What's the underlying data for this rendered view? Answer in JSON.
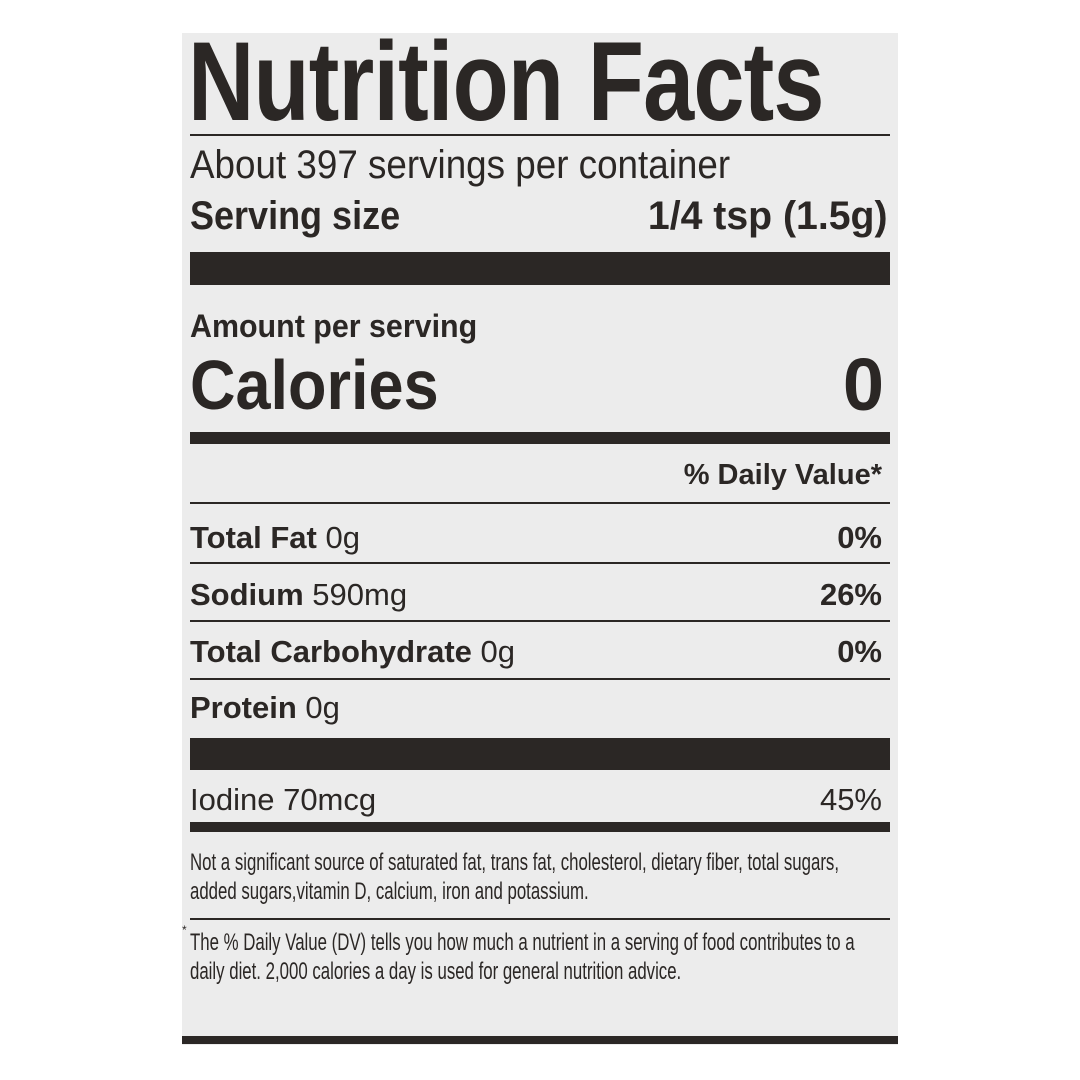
{
  "title": "Nutrition Facts",
  "servings_per_container": "About 397 servings per container",
  "serving_size": {
    "label": "Serving size",
    "value": "1/4 tsp (1.5g)"
  },
  "amount_per_serving": "Amount per serving",
  "calories": {
    "label": "Calories",
    "value": "0"
  },
  "daily_value_header": "% Daily Value*",
  "nutrients": [
    {
      "name": "Total Fat",
      "amount": "0g",
      "dv": "0%"
    },
    {
      "name": "Sodium",
      "amount": "590mg",
      "dv": "26%"
    },
    {
      "name": "Total Carbohydrate",
      "amount": "0g",
      "dv": "0%"
    },
    {
      "name": "Protein",
      "amount": "0g",
      "dv": ""
    }
  ],
  "vitamins": [
    {
      "name": "Iodine 70mcg",
      "dv": "45%"
    }
  ],
  "footnote_not_significant": "Not a significant source of saturated fat, trans fat, cholesterol, dietary fiber, total sugars, added sugars,vitamin D, calcium, iron and potassium.",
  "footnote_dv": "The % Daily Value (DV) tells you how much a nutrient in a serving of food contributes to a daily diet. 2,000 calories a day is used for general nutrition advice.",
  "colors": {
    "ink": "#2b2725",
    "label_background": "#ececec"
  }
}
